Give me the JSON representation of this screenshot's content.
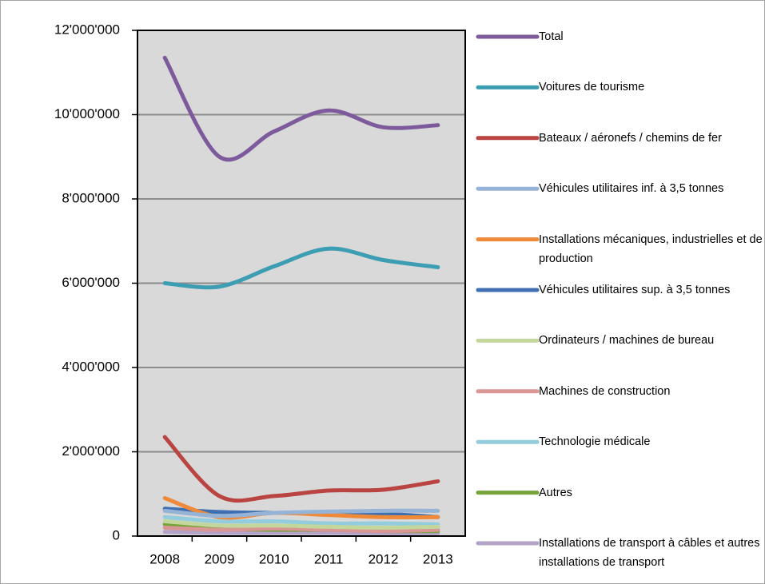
{
  "chart_data": {
    "type": "line",
    "categories": [
      "2008",
      "2009",
      "2010",
      "2011",
      "2012",
      "2013"
    ],
    "ylim": [
      0,
      12000000
    ],
    "yticks": [
      0,
      {
        "value": 2000000,
        "label": "2'000'000"
      },
      {
        "value": 4000000,
        "label": "4'000'000"
      },
      {
        "value": 6000000,
        "label": "6'000'000"
      },
      {
        "value": 8000000,
        "label": "8'000'000"
      },
      {
        "value": 10000000,
        "label": "10'000'000"
      },
      {
        "value": 12000000,
        "label": "12'000'000"
      }
    ],
    "grid": true,
    "smooth": true,
    "series": [
      {
        "name": "Total",
        "color": "#7d5a9b",
        "values": [
          11350000,
          9000000,
          9600000,
          10100000,
          9700000,
          9750000
        ]
      },
      {
        "name": "Voitures de tourisme",
        "color": "#3d9db3",
        "values": [
          6000000,
          5920000,
          6400000,
          6820000,
          6550000,
          6380000
        ]
      },
      {
        "name": "Bateaux / aéronefs / chemins de fer",
        "color": "#b94441",
        "values": [
          2350000,
          950000,
          950000,
          1080000,
          1100000,
          1300000
        ]
      },
      {
        "name": "Véhicules utilitaires inf. à 3,5 tonnes",
        "color": "#95b3d7",
        "values": [
          600000,
          480000,
          550000,
          580000,
          600000,
          600000
        ]
      },
      {
        "name": "Installations mécaniques, industrielles et de production",
        "color": "#ee8a3a",
        "values": [
          900000,
          450000,
          550000,
          500000,
          450000,
          450000
        ]
      },
      {
        "name": "Véhicules utilitaires sup. à 3,5 tonnes",
        "color": "#3f6fb0",
        "values": [
          650000,
          570000,
          550000,
          550000,
          530000,
          450000
        ]
      },
      {
        "name": "Ordinateurs / machines de bureau",
        "color": "#c3d69b",
        "values": [
          350000,
          250000,
          250000,
          220000,
          200000,
          220000
        ]
      },
      {
        "name": "Machines de construction",
        "color": "#d99694",
        "values": [
          200000,
          150000,
          180000,
          150000,
          120000,
          150000
        ]
      },
      {
        "name": "Technologie médicale",
        "color": "#93cddd",
        "values": [
          450000,
          350000,
          350000,
          300000,
          300000,
          280000
        ]
      },
      {
        "name": "Autres",
        "color": "#77a33b",
        "values": [
          280000,
          180000,
          150000,
          150000,
          120000,
          120000
        ]
      },
      {
        "name": "Installations de transport à câbles et autres installations de transport",
        "color": "#b3a2c7",
        "values": [
          100000,
          80000,
          80000,
          80000,
          70000,
          70000
        ]
      }
    ]
  }
}
